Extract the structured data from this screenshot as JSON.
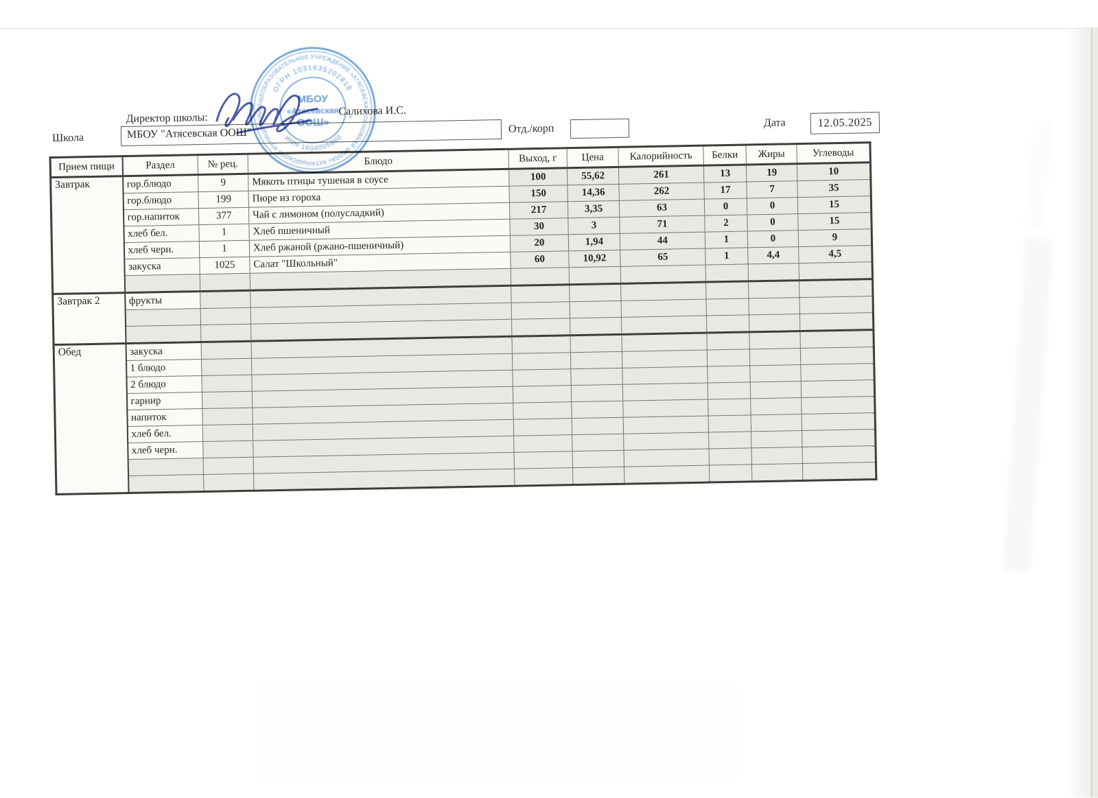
{
  "document": {
    "director_label": "Директор школы:",
    "director_name": "Салихова И.С.",
    "school_label": "Школа",
    "school_name": "МБОУ \"Атясевская ООШ\"",
    "dept_label": "Отд./корп",
    "dept_value": "",
    "date_label": "Дата",
    "date_value": "12.05.2025"
  },
  "stamp": {
    "ring_text": "ОБЩЕОБРАЗОВАТЕЛЬНОЕ УЧРЕЖДЕНИЕ «АТЯСЕВСКАЯ ОСНОВНАЯ ШКОЛА» АКТАНЫШСКОГО МУНИЦИПАЛЬНОГО ",
    "ogrn_text": "ОГРН 1031635202818",
    "inn_text": "ИНН 1604005860",
    "center_line1": "МБОУ",
    "center_line2": "«Атясевская",
    "center_line3": "ООШ»",
    "ink_color": "#4f8ccb"
  },
  "signature": {
    "ink_color": "#3f4fa0"
  },
  "table": {
    "headers": [
      "Прием пищи",
      "Раздел",
      "№ рец.",
      "Блюдо",
      "Выход, г",
      "Цена",
      "Калорийность",
      "Белки",
      "Жиры",
      "Углеводы"
    ],
    "sections": [
      {
        "meal": "Завтрак",
        "rows": [
          {
            "razdel": "гор.блюдо",
            "rec": "9",
            "dish": "Мякоть птицы тушеная в соусе",
            "values": [
              "100",
              "55,62",
              "261",
              "13",
              "19",
              "10"
            ]
          },
          {
            "razdel": "гор.блюдо",
            "rec": "199",
            "dish": "Пюре из гороха",
            "values": [
              "150",
              "14,36",
              "262",
              "17",
              "7",
              "35"
            ]
          },
          {
            "razdel": "гор.напиток",
            "rec": "377",
            "dish": "Чай с лимоном (полусладкий)",
            "values": [
              "217",
              "3,35",
              "63",
              "0",
              "0",
              "15"
            ]
          },
          {
            "razdel": "хлеб бел.",
            "rec": "1",
            "dish": "Хлеб пшеничный",
            "values": [
              "30",
              "3",
              "71",
              "2",
              "0",
              "15"
            ]
          },
          {
            "razdel": "хлеб черн.",
            "rec": "1",
            "dish": "Хлеб ржаной (ржано-пшеничный)",
            "values": [
              "20",
              "1,94",
              "44",
              "1",
              "0",
              "9"
            ]
          },
          {
            "razdel": "закуска",
            "rec": "1025",
            "dish": "Салат \"Школьный\"",
            "values": [
              "60",
              "10,92",
              "65",
              "1",
              "4,4",
              "4,5"
            ]
          },
          {
            "razdel": "",
            "rec": "",
            "dish": "",
            "values": [
              "",
              "",
              "",
              "",
              "",
              ""
            ]
          }
        ]
      },
      {
        "meal": "Завтрак 2",
        "rows": [
          {
            "razdel": "фрукты",
            "rec": "",
            "dish": "",
            "values": [
              "",
              "",
              "",
              "",
              "",
              ""
            ]
          },
          {
            "razdel": "",
            "rec": "",
            "dish": "",
            "values": [
              "",
              "",
              "",
              "",
              "",
              ""
            ]
          },
          {
            "razdel": "",
            "rec": "",
            "dish": "",
            "values": [
              "",
              "",
              "",
              "",
              "",
              ""
            ]
          }
        ]
      },
      {
        "meal": "Обед",
        "rows": [
          {
            "razdel": "закуска",
            "rec": "",
            "dish": "",
            "values": [
              "",
              "",
              "",
              "",
              "",
              ""
            ]
          },
          {
            "razdel": "1 блюдо",
            "rec": "",
            "dish": "",
            "values": [
              "",
              "",
              "",
              "",
              "",
              ""
            ]
          },
          {
            "razdel": "2 блюдо",
            "rec": "",
            "dish": "",
            "values": [
              "",
              "",
              "",
              "",
              "",
              ""
            ]
          },
          {
            "razdel": "гарнир",
            "rec": "",
            "dish": "",
            "values": [
              "",
              "",
              "",
              "",
              "",
              ""
            ]
          },
          {
            "razdel": "напиток",
            "rec": "",
            "dish": "",
            "values": [
              "",
              "",
              "",
              "",
              "",
              ""
            ]
          },
          {
            "razdel": "хлеб бел.",
            "rec": "",
            "dish": "",
            "values": [
              "",
              "",
              "",
              "",
              "",
              ""
            ]
          },
          {
            "razdel": "хлеб черн.",
            "rec": "",
            "dish": "",
            "values": [
              "",
              "",
              "",
              "",
              "",
              ""
            ]
          },
          {
            "razdel": "",
            "rec": "",
            "dish": "",
            "values": [
              "",
              "",
              "",
              "",
              "",
              ""
            ]
          },
          {
            "razdel": "",
            "rec": "",
            "dish": "",
            "values": [
              "",
              "",
              "",
              "",
              "",
              ""
            ]
          }
        ]
      }
    ]
  }
}
